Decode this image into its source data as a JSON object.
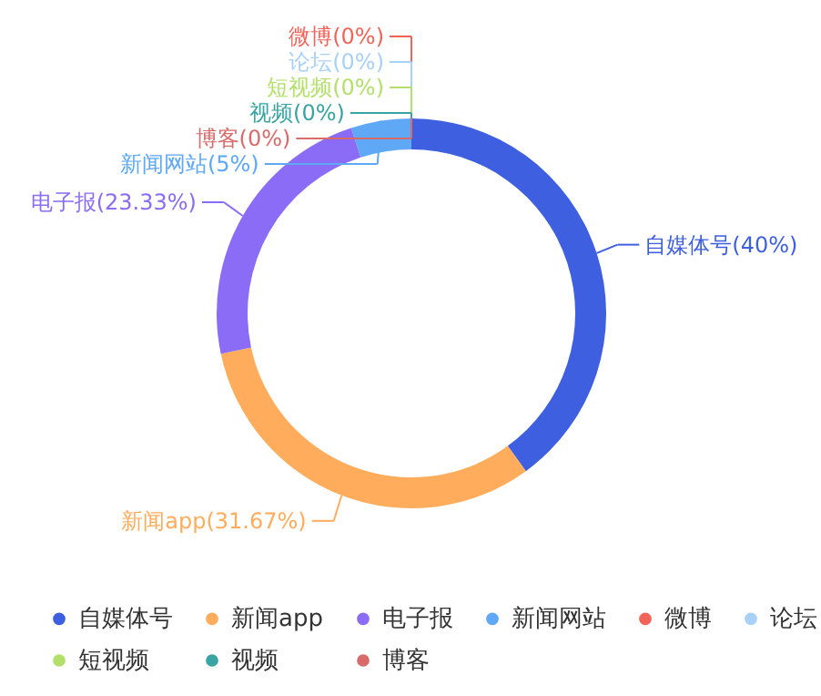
{
  "chart_data": {
    "type": "donut",
    "categories": [
      "自媒体号",
      "新闻app",
      "电子报",
      "新闻网站",
      "微博",
      null,
      "论坛",
      "短视频",
      "视频",
      "博客"
    ],
    "values": [
      40,
      31.67,
      23.33,
      5,
      0,
      0,
      0,
      0,
      0,
      0
    ],
    "value_labels": [
      "(40%)",
      "(31.67%)",
      "(23.33%)",
      "(5%)",
      "(0%)",
      null,
      "(0%)",
      "(0%)",
      "(0%)",
      "(0%)"
    ],
    "colors": [
      "#3d5fe0",
      "#ffad5c",
      "#8b6cf7",
      "#5ea8f5",
      "#f2645a",
      "#4ccf74",
      "#a8d1f7",
      "#b3e06b",
      "#3aa3a3",
      "#d86a6a"
    ],
    "legend": "bottom"
  }
}
